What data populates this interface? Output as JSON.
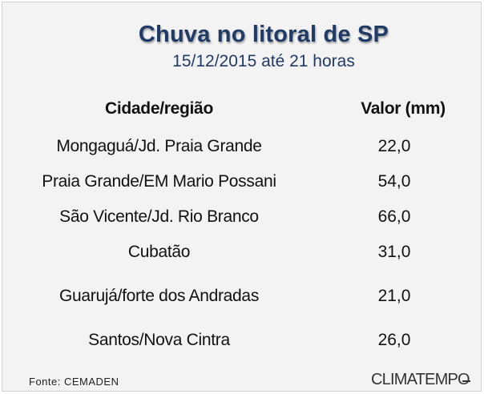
{
  "chart_data": {
    "type": "table",
    "title": "Chuva no litoral de SP",
    "subtitle": "15/12/2015 até 21 horas",
    "columns": [
      "Cidade/região",
      "Valor (mm)"
    ],
    "rows": [
      {
        "city": "Mongaguá/Jd. Praia Grande",
        "value": "22,0"
      },
      {
        "city": "Praia Grande/EM Mario Possani",
        "value": "54,0"
      },
      {
        "city": "São Vicente/Jd. Rio Branco",
        "value": "66,0"
      },
      {
        "city": "Cubatão",
        "value": "31,0"
      },
      {
        "city": "Guarujá/forte dos Andradas",
        "value": "21,0"
      },
      {
        "city": "Santos/Nova Cintra",
        "value": "26,0"
      }
    ]
  },
  "footer": {
    "source": "Fonte: CEMADEN",
    "logo": "CLIMATEMPO"
  },
  "colors": {
    "title": "#1f3b66",
    "background": "#f3f3f3"
  }
}
